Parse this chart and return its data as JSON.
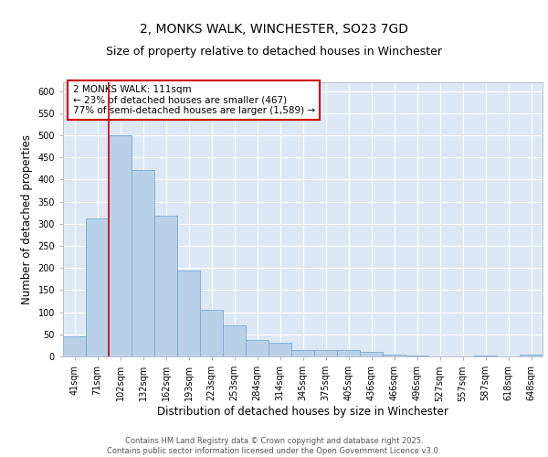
{
  "title_line1": "2, MONKS WALK, WINCHESTER, SO23 7GD",
  "title_line2": "Size of property relative to detached houses in Winchester",
  "xlabel": "Distribution of detached houses by size in Winchester",
  "ylabel": "Number of detached properties",
  "bar_labels": [
    "41sqm",
    "71sqm",
    "102sqm",
    "132sqm",
    "162sqm",
    "193sqm",
    "223sqm",
    "253sqm",
    "284sqm",
    "314sqm",
    "345sqm",
    "375sqm",
    "405sqm",
    "436sqm",
    "466sqm",
    "496sqm",
    "527sqm",
    "557sqm",
    "587sqm",
    "618sqm",
    "648sqm"
  ],
  "bar_values": [
    46,
    312,
    500,
    422,
    318,
    195,
    105,
    70,
    38,
    32,
    14,
    14,
    15,
    10,
    5,
    2,
    1,
    0,
    2,
    1,
    5
  ],
  "bar_color": "#b8d0e8",
  "bar_edge_color": "#7aaace",
  "background_color": "#dce8f5",
  "grid_color": "#ffffff",
  "vline_color": "#cc0000",
  "vline_x_index": 1.5,
  "annotation_text": "2 MONKS WALK: 111sqm\n← 23% of detached houses are smaller (467)\n77% of semi-detached houses are larger (1,589) →",
  "annotation_box_edge_color": "#cc0000",
  "ylim": [
    0,
    620
  ],
  "yticks": [
    0,
    50,
    100,
    150,
    200,
    250,
    300,
    350,
    400,
    450,
    500,
    550,
    600
  ],
  "footnote": "Contains HM Land Registry data © Crown copyright and database right 2025.\nContains public sector information licensed under the Open Government Licence v3.0.",
  "title_fontsize": 10,
  "subtitle_fontsize": 9,
  "tick_fontsize": 7,
  "ylabel_fontsize": 8.5,
  "xlabel_fontsize": 8.5,
  "annotation_fontsize": 7.5,
  "footnote_fontsize": 6
}
